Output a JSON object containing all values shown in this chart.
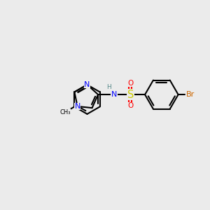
{
  "background_color": "#ebebeb",
  "atom_colors": {
    "C": "#000000",
    "N": "#0000ff",
    "O": "#ff0000",
    "S": "#cccc00",
    "Br": "#cc6600",
    "H": "#558888"
  },
  "lw": 1.5,
  "fs": 7.5,
  "figsize": [
    3.0,
    3.0
  ],
  "dpi": 100
}
